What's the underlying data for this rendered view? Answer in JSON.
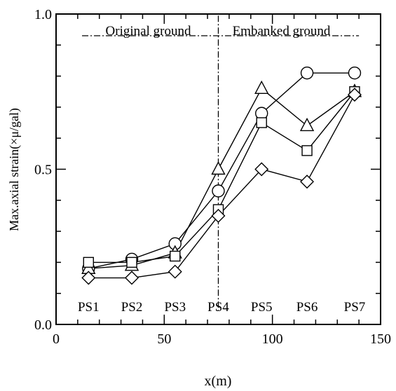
{
  "chart_data": {
    "type": "line",
    "xlabel": "x(m)",
    "ylabel": "Max.axial strain(×μ/gal)",
    "xlim": [
      0,
      150
    ],
    "ylim": [
      0.0,
      1.0
    ],
    "x_ticks": [
      "0",
      "50",
      "100",
      "150"
    ],
    "y_ticks": [
      "0.0",
      "0.5",
      "1.0"
    ],
    "x_minor_step": 10,
    "y_minor_step": 0.1,
    "region_labels": [
      {
        "text": "Original ground",
        "x_from": 12,
        "x_to": 75
      },
      {
        "text": "Embanked ground",
        "x_from": 75,
        "x_to": 140
      }
    ],
    "region_line_y": 0.93,
    "region_divider_x": 75,
    "station_labels": [
      "PS1",
      "PS2",
      "PS3",
      "PS4",
      "PS5",
      "PS6",
      "PS7"
    ],
    "x": [
      15,
      35,
      55,
      75,
      95,
      116,
      138
    ],
    "series": [
      {
        "marker": "circle",
        "values": [
          0.18,
          0.21,
          0.26,
          0.43,
          0.68,
          0.81,
          0.81
        ]
      },
      {
        "marker": "triangle",
        "values": [
          0.18,
          0.19,
          0.23,
          0.5,
          0.76,
          0.64,
          0.75
        ]
      },
      {
        "marker": "square",
        "values": [
          0.2,
          0.2,
          0.22,
          0.37,
          0.65,
          0.56,
          0.75
        ]
      },
      {
        "marker": "diamond",
        "values": [
          0.15,
          0.15,
          0.17,
          0.35,
          0.5,
          0.46,
          0.74
        ]
      }
    ]
  }
}
